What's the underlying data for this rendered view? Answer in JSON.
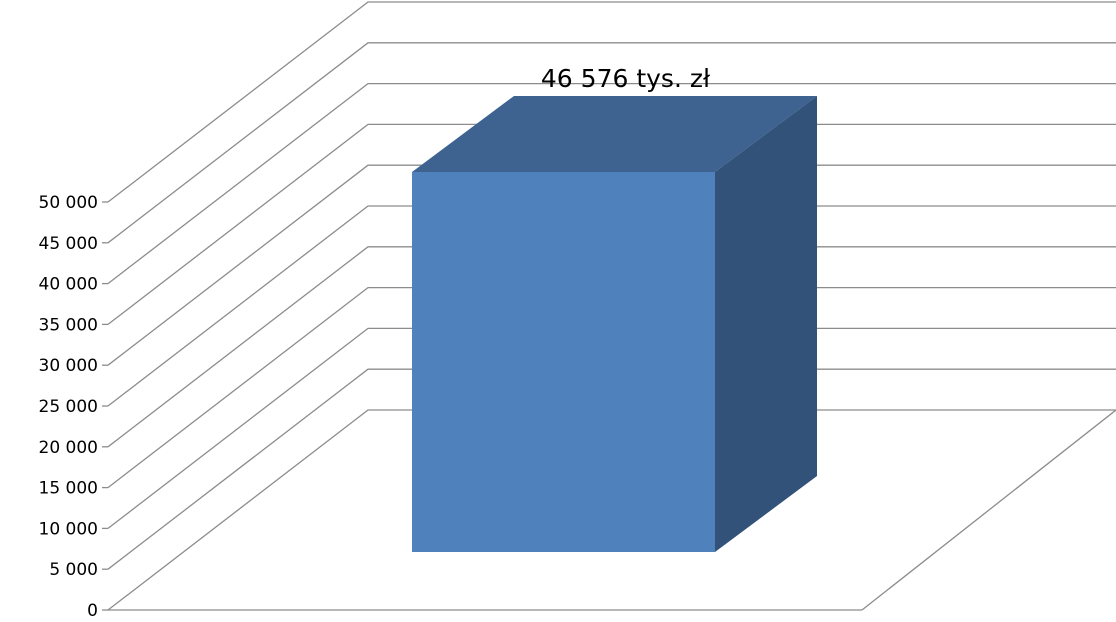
{
  "chart_data": {
    "type": "bar",
    "categories": [
      ""
    ],
    "values": [
      46576
    ],
    "data_labels": [
      "46 576 tys. zł"
    ],
    "title": "",
    "xlabel": "",
    "ylabel": "",
    "ylim": [
      0,
      50000
    ],
    "y_tick_values": [
      0,
      5000,
      10000,
      15000,
      20000,
      25000,
      30000,
      35000,
      40000,
      45000,
      50000
    ],
    "y_tick_labels": [
      "0",
      "5 000",
      "10 000",
      "15 000",
      "20 000",
      "25 000",
      "30 000",
      "35 000",
      "40 000",
      "45 000",
      "50 000"
    ],
    "grid": true,
    "legend": "none",
    "style": "3d-column",
    "colors": {
      "bar_front": "#4F81BD",
      "bar_top": "#3E6391",
      "bar_side": "#32527A",
      "gridlines": "#8C8C8C"
    }
  }
}
